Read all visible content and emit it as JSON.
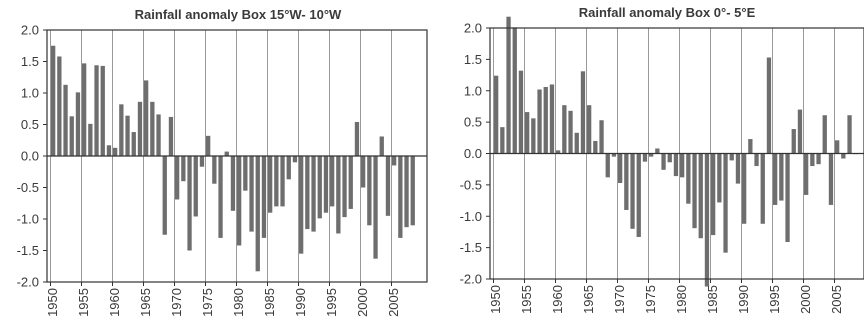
{
  "chart_data": [
    {
      "type": "bar",
      "title": "Rainfall anomaly Box 15°W- 10°W",
      "xlabel": "",
      "ylabel": "",
      "ylim": [
        -2.0,
        2.0
      ],
      "y_ticks": [
        "2.0",
        "1.5",
        "1.0",
        "0.5",
        "0.0",
        "-0.5",
        "-1.0",
        "-1.5",
        "-2.0"
      ],
      "x_ticks": [
        "1950",
        "1955",
        "1960",
        "1965",
        "1970",
        "1975",
        "1980",
        "1985",
        "1990",
        "1995",
        "2000",
        "2005"
      ],
      "grid": "vertical",
      "bar_color": "#6e6e6e",
      "categories": [
        1950,
        1951,
        1952,
        1953,
        1954,
        1955,
        1956,
        1957,
        1958,
        1959,
        1960,
        1961,
        1962,
        1963,
        1964,
        1965,
        1966,
        1967,
        1968,
        1969,
        1970,
        1971,
        1972,
        1973,
        1974,
        1975,
        1976,
        1977,
        1978,
        1979,
        1980,
        1981,
        1982,
        1983,
        1984,
        1985,
        1986,
        1987,
        1988,
        1989,
        1990,
        1991,
        1992,
        1993,
        1994,
        1995,
        1996,
        1997,
        1998,
        1999,
        2000,
        2001,
        2002,
        2003,
        2004,
        2005,
        2006,
        2007,
        2008
      ],
      "values": [
        1.75,
        1.58,
        1.13,
        0.63,
        1.01,
        1.47,
        0.51,
        1.44,
        1.43,
        0.17,
        0.13,
        0.82,
        0.64,
        0.38,
        0.86,
        1.2,
        0.86,
        0.66,
        -1.25,
        0.62,
        -0.69,
        -0.4,
        -1.5,
        -0.96,
        -0.17,
        0.32,
        -0.44,
        -1.3,
        0.07,
        -0.87,
        -1.42,
        -0.55,
        -1.2,
        -1.83,
        -1.3,
        -0.9,
        -0.8,
        -0.8,
        -0.37,
        -0.1,
        -1.55,
        -1.16,
        -1.2,
        -0.99,
        -0.9,
        -0.8,
        -1.23,
        -0.97,
        -0.84,
        0.54,
        -0.5,
        -1.1,
        -1.63,
        0.31,
        -0.95,
        -0.15,
        -1.3,
        -1.13,
        -1.1
      ]
    },
    {
      "type": "bar",
      "title": "Rainfall anomaly Box 0°- 5°E",
      "xlabel": "",
      "ylabel": "",
      "ylim": [
        -2.0,
        2.0
      ],
      "y_ticks": [
        "2.0",
        "1.5",
        "1.0",
        "0.5",
        "0.0",
        "-0.5",
        "-1.0",
        "-1.5",
        "-2.0"
      ],
      "x_ticks": [
        "1950",
        "1955",
        "1960",
        "1965",
        "1970",
        "1975",
        "1980",
        "1985",
        "1990",
        "1995",
        "2000",
        "2005"
      ],
      "grid": "vertical",
      "bar_color": "#6e6e6e",
      "categories": [
        1950,
        1951,
        1952,
        1953,
        1954,
        1955,
        1956,
        1957,
        1958,
        1959,
        1960,
        1961,
        1962,
        1963,
        1964,
        1965,
        1966,
        1967,
        1968,
        1969,
        1970,
        1971,
        1972,
        1973,
        1974,
        1975,
        1976,
        1977,
        1978,
        1979,
        1980,
        1981,
        1982,
        1983,
        1984,
        1985,
        1986,
        1987,
        1988,
        1989,
        1990,
        1991,
        1992,
        1993,
        1994,
        1995,
        1996,
        1997,
        1998,
        1999,
        2000,
        2001,
        2002,
        2003,
        2004,
        2005,
        2006,
        2007,
        2008
      ],
      "values": [
        1.24,
        0.42,
        2.18,
        2.01,
        1.32,
        0.66,
        0.56,
        1.02,
        1.06,
        1.1,
        0.05,
        0.77,
        0.68,
        0.33,
        1.31,
        0.77,
        0.2,
        0.53,
        -0.38,
        -0.05,
        -0.47,
        -0.9,
        -1.2,
        -1.33,
        -0.13,
        -0.05,
        0.08,
        -0.26,
        -0.14,
        -0.36,
        -0.38,
        -0.8,
        -1.19,
        -1.35,
        -2.12,
        -1.3,
        -0.78,
        -1.58,
        -0.11,
        -0.48,
        -1.12,
        0.23,
        -0.2,
        -1.12,
        1.53,
        -0.82,
        -0.75,
        -1.41,
        0.39,
        0.7,
        -0.66,
        -0.2,
        -0.17,
        0.61,
        -0.82,
        0.21,
        -0.08,
        0.61,
        0.0
      ]
    }
  ]
}
